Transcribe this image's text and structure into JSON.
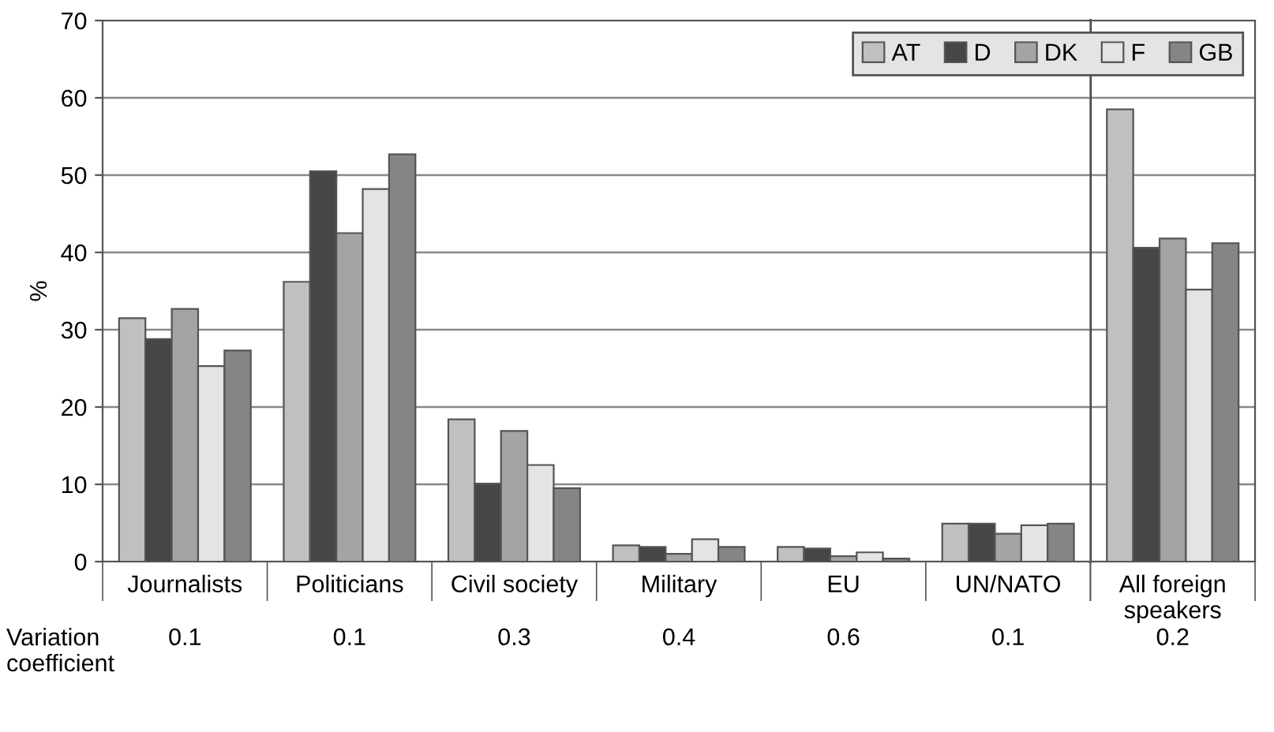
{
  "chart_data": [
    {
      "type": "bar",
      "ylabel": "%",
      "categories": [
        "Journalists",
        "Politicians",
        "Civil society",
        "Military",
        "EU",
        "UN/NATO"
      ],
      "series": [
        {
          "name": "AT",
          "color": "#c0c0c0",
          "values": [
            31.5,
            36.2,
            18.4,
            2.1,
            1.9,
            4.9
          ]
        },
        {
          "name": "D",
          "color": "#464646",
          "values": [
            28.8,
            50.5,
            10.1,
            1.9,
            1.7,
            4.9
          ]
        },
        {
          "name": "DK",
          "color": "#a4a4a4",
          "values": [
            32.7,
            42.5,
            16.9,
            1.0,
            0.7,
            3.6
          ]
        },
        {
          "name": "F",
          "color": "#e4e4e4",
          "values": [
            25.3,
            48.2,
            12.5,
            2.9,
            1.2,
            4.7
          ]
        },
        {
          "name": "GB",
          "color": "#858585",
          "values": [
            27.3,
            52.7,
            9.5,
            1.9,
            0.4,
            4.9
          ]
        }
      ],
      "ylim": [
        0,
        70
      ],
      "yticks": [
        0,
        10,
        20,
        30,
        40,
        50,
        60,
        70
      ],
      "grid": "y",
      "legend": "top right",
      "annotations": [
        "Variation\ncoefficient",
        "0.1",
        "0.1",
        "0.3",
        "0.4",
        "0.6",
        "0.1"
      ]
    },
    {
      "type": "bar",
      "categories": [
        "All foreign\nspeakers"
      ],
      "series": [
        {
          "color": "#c0c0c0",
          "values": [
            58.5
          ]
        },
        {
          "color": "#464646",
          "values": [
            40.6
          ]
        },
        {
          "color": "#a4a4a4",
          "values": [
            41.8
          ]
        },
        {
          "color": "#e4e4e4",
          "values": [
            35.2
          ]
        },
        {
          "color": "#858585",
          "values": [
            41.2
          ]
        }
      ],
      "ylim": [
        0,
        70
      ],
      "yticks": [
        0,
        10,
        20,
        30,
        40,
        50,
        60,
        70
      ],
      "grid": "y",
      "tick_labels": "x",
      "annotations": [
        "0.2"
      ]
    }
  ]
}
